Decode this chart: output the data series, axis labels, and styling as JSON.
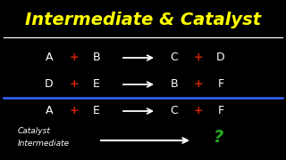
{
  "title": "Intermediate & Catalyst",
  "title_color": "#FFFF00",
  "bg_color": "#000000",
  "white": "#FFFFFF",
  "red": "#CC2200",
  "green": "#22AA22",
  "blue_line_color": "#3366FF",
  "label1": "Catalyst",
  "label2": "Intermediate",
  "question_mark": "?",
  "title_fontsize": 14,
  "eq_fontsize": 9,
  "label_fontsize": 6.5,
  "qmark_fontsize": 14
}
